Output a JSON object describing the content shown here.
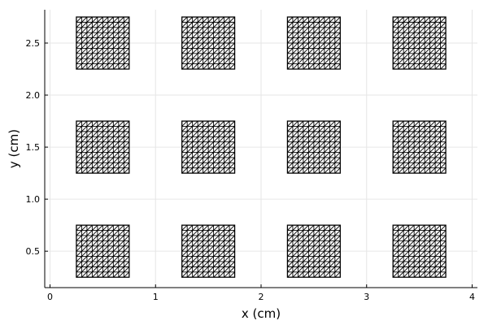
{
  "chart_data": {
    "type": "mesh-plot",
    "title": "",
    "xlabel": "x (cm)",
    "ylabel": "y (cm)",
    "xlim": [
      -0.05,
      4.05
    ],
    "ylim": [
      0.15,
      2.82
    ],
    "xticks": [
      0,
      1,
      2,
      3,
      4
    ],
    "xtick_labels": [
      "0",
      "1",
      "2",
      "3",
      "4"
    ],
    "yticks": [
      0.5,
      1.0,
      1.5,
      2.0,
      2.5
    ],
    "ytick_labels": [
      "0.5",
      "1.0",
      "1.5",
      "2.0",
      "2.5"
    ],
    "grid": true,
    "legend": "none",
    "mesh": {
      "element": "right-triangle",
      "divisions_per_side": 10,
      "color": "#000000"
    },
    "squares": [
      {
        "x0": 0.25,
        "y0": 0.25,
        "size": 0.5
      },
      {
        "x0": 1.25,
        "y0": 0.25,
        "size": 0.5
      },
      {
        "x0": 2.25,
        "y0": 0.25,
        "size": 0.5
      },
      {
        "x0": 3.25,
        "y0": 0.25,
        "size": 0.5
      },
      {
        "x0": 0.25,
        "y0": 1.25,
        "size": 0.5
      },
      {
        "x0": 1.25,
        "y0": 1.25,
        "size": 0.5
      },
      {
        "x0": 2.25,
        "y0": 1.25,
        "size": 0.5
      },
      {
        "x0": 3.25,
        "y0": 1.25,
        "size": 0.5
      },
      {
        "x0": 0.25,
        "y0": 2.25,
        "size": 0.5
      },
      {
        "x0": 1.25,
        "y0": 2.25,
        "size": 0.5
      },
      {
        "x0": 2.25,
        "y0": 2.25,
        "size": 0.5
      },
      {
        "x0": 3.25,
        "y0": 2.25,
        "size": 0.5
      }
    ]
  }
}
